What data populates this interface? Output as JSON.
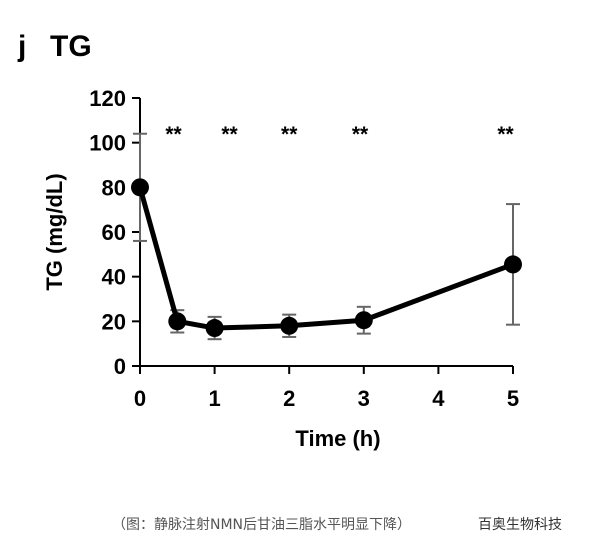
{
  "panel": {
    "letter": "j",
    "title": "TG"
  },
  "chart_data": {
    "type": "line",
    "title": "TG",
    "xlabel": "Time (h)",
    "ylabel": "TG (mg/dL)",
    "xlim": [
      0,
      5
    ],
    "ylim": [
      0,
      120
    ],
    "x_ticks": [
      0,
      1,
      2,
      3,
      4,
      5
    ],
    "y_ticks": [
      0,
      20,
      40,
      60,
      80,
      100,
      120
    ],
    "grid": false,
    "series": [
      {
        "x": [
          0,
          0.5,
          1,
          2,
          3,
          5
        ],
        "y": [
          80,
          20,
          17,
          18,
          20.5,
          45.5
        ],
        "error": [
          24,
          5,
          5,
          5,
          6,
          27
        ]
      }
    ],
    "significance": [
      {
        "x": 0.45,
        "label": "**"
      },
      {
        "x": 1.2,
        "label": "**"
      },
      {
        "x": 2.0,
        "label": "**"
      },
      {
        "x": 2.95,
        "label": "**"
      },
      {
        "x": 4.9,
        "label": "**"
      }
    ]
  },
  "caption": "（图：静脉注射NMN后甘油三脂水平明显下降）",
  "watermark": "百奥生物科技"
}
